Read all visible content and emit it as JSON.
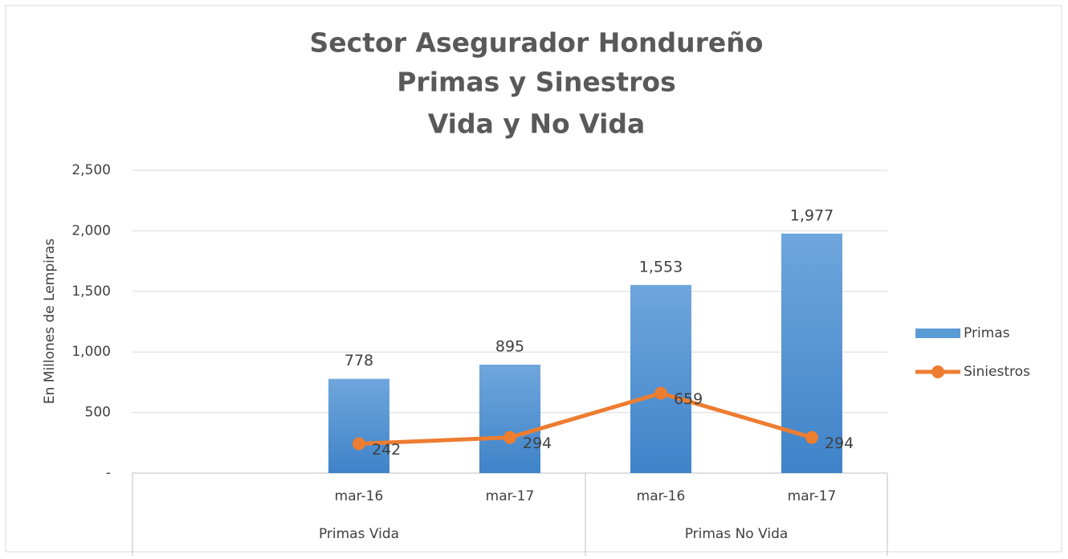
{
  "chart_data": {
    "type": "bar_line",
    "title": [
      "Sector Asegurador Hondureño",
      "Primas y Sinestros",
      "Vida y No Vida"
    ],
    "y_label": "En Millones de Lempiras",
    "categories": [
      null,
      "mar-16",
      "mar-17",
      "mar-16",
      "mar-17"
    ],
    "groups": [
      {
        "name": "Primas Vida",
        "count": 3
      },
      {
        "name": "Primas No Vida",
        "count": 2
      }
    ],
    "series": [
      {
        "name": "Primas",
        "type": "bar",
        "color": "#5b9bd5",
        "values": [
          null,
          778,
          895,
          1553,
          1977
        ],
        "value_labels": [
          null,
          "778",
          "895",
          "1,553",
          "1,977"
        ]
      },
      {
        "name": "Siniestros",
        "type": "line",
        "color": "#ed7d31",
        "values": [
          null,
          242,
          294,
          659,
          294
        ]
      }
    ],
    "ylim": [
      0,
      2500
    ],
    "yticks": [
      {
        "value": 0,
        "label": "-"
      },
      500,
      {
        "value": 1000,
        "label": "1,000"
      },
      {
        "value": 1500,
        "label": "1,500"
      },
      {
        "value": 2000,
        "label": "2,000"
      },
      {
        "value": 2500,
        "label": "2,500"
      }
    ],
    "grid": true,
    "legend": "right"
  }
}
